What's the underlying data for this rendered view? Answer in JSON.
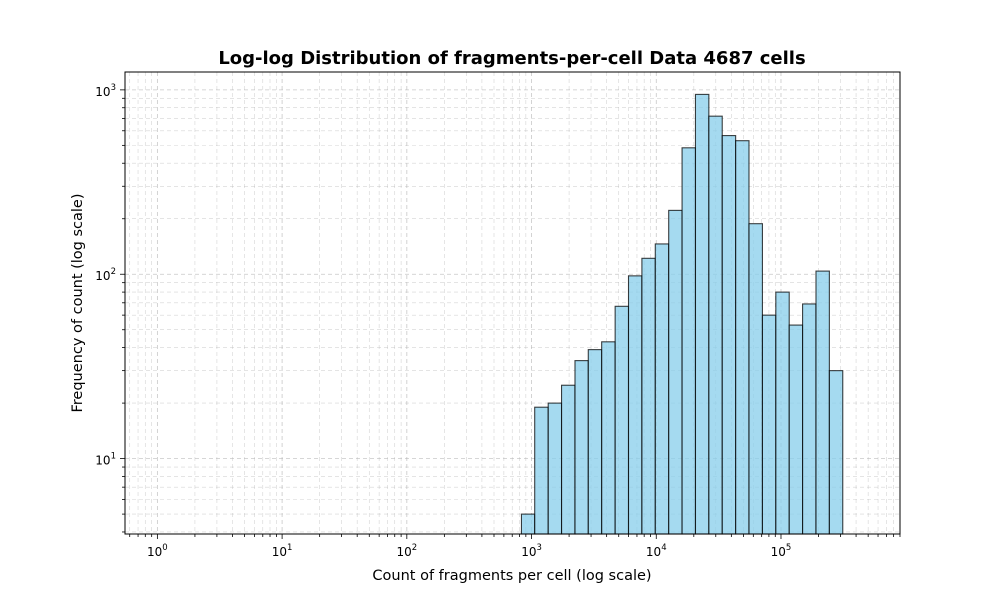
{
  "chart_data": {
    "type": "bar",
    "title": "Log-log Distribution of fragments-per-cell Data 4687 cells",
    "xlabel": "Count of fragments per cell (log scale)",
    "ylabel": "Frequency of count (log scale)",
    "xscale": "log",
    "yscale": "log",
    "xlim": [
      0.55,
      900000
    ],
    "ylim": [
      3.9,
      1250
    ],
    "grid": true,
    "bar_color": "#87CEEB",
    "edge_color": "#000000",
    "x_ticks": [
      {
        "base": "10",
        "exp": "0"
      },
      {
        "base": "10",
        "exp": "1"
      },
      {
        "base": "10",
        "exp": "2"
      },
      {
        "base": "10",
        "exp": "3"
      },
      {
        "base": "10",
        "exp": "4"
      },
      {
        "base": "10",
        "exp": "5"
      }
    ],
    "y_ticks": [
      {
        "base": "10",
        "exp": "1"
      },
      {
        "base": "10",
        "exp": "2"
      },
      {
        "base": "10",
        "exp": "3"
      }
    ],
    "bin_edges": [
      830,
      1060,
      1360,
      1740,
      2230,
      2850,
      3650,
      4680,
      5990,
      7670,
      9820,
      12580,
      16100,
      20620,
      26400,
      33800,
      43300,
      55400,
      71000,
      90900,
      116400,
      149000,
      190800,
      244300,
      312800,
      400600,
      513000
    ],
    "values": [
      5,
      19,
      20,
      25,
      34,
      39,
      43,
      67,
      98,
      122,
      146,
      222,
      485,
      945,
      720,
      565,
      530,
      188,
      60,
      80,
      53,
      69,
      104,
      30,
      0,
      0
    ]
  }
}
